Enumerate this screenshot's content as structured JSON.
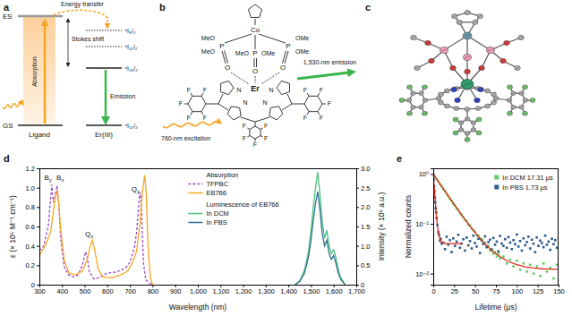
{
  "diagram_a": {
    "panel_label": "a",
    "excited_state": "ES",
    "ground_state": "GS",
    "energy_transfer": "Energy transfer",
    "absorption": "Absorption",
    "stokes_shift": "Stokes shift",
    "emission": "Emission",
    "donor": "Ligand",
    "acceptor": "Er(III)",
    "levels": [
      "⁴I₉/₂",
      "⁴I₁₁/₂",
      "⁴I₁₃/₂",
      "⁴I₁₅/₂"
    ]
  },
  "structure_b": {
    "panel_label": "b",
    "cobalt": "Co",
    "metal": "Er",
    "phosphorus": [
      "P",
      "P",
      "P"
    ],
    "oxygen": [
      "O",
      "O",
      "O"
    ],
    "methoxy": [
      "MeO",
      "MeO",
      "OMe",
      "OMe",
      "MeO",
      "OMe"
    ],
    "nitrogen": [
      "N",
      "N",
      "N",
      "N"
    ],
    "fluorine": [
      "F",
      "F",
      "F",
      "F",
      "F",
      "F",
      "F",
      "F",
      "F",
      "F",
      "F",
      "F",
      "F",
      "F",
      "F"
    ],
    "excitation": "760-nm excitation",
    "emission": "1,530-nm emission"
  },
  "structure_c": {
    "panel_label": "c"
  },
  "chart_data": [
    {
      "panel_label": "d",
      "type": "line",
      "xlabel": "Wavelength (nm)",
      "ylabel": "ε (× 10⁵ M⁻¹ cm⁻¹)",
      "y2label": "Intensity (× 10⁶ a.u.)",
      "xlim": [
        300,
        1700
      ],
      "xticks": [
        300,
        400,
        500,
        600,
        700,
        800,
        900,
        {
          "value": 1000,
          "label": "1,000"
        },
        {
          "value": 1100,
          "label": "1,100"
        },
        {
          "value": 1200,
          "label": "1,200"
        },
        {
          "value": 1300,
          "label": "1,300"
        },
        {
          "value": 1400,
          "label": "1,400"
        },
        {
          "value": 1500,
          "label": "1,500"
        },
        {
          "value": 1600,
          "label": "1,600"
        },
        {
          "value": 1700,
          "label": "1,700"
        }
      ],
      "ylim": [
        0,
        1.2
      ],
      "yticks": [
        0,
        0.2,
        0.4,
        0.6,
        0.8,
        {
          "value": 1,
          "label": "1.0"
        },
        1.2
      ],
      "y2lim": [
        0,
        3
      ],
      "y2ticks": [
        0,
        0.5,
        {
          "value": 1,
          "label": "1.0"
        },
        1.5,
        {
          "value": 2,
          "label": "2.0"
        },
        2.5,
        {
          "value": 3,
          "label": "3.0"
        }
      ],
      "legend": "upper center",
      "legend_titles": [
        "Absorption",
        "Luminescence of EB766"
      ],
      "annotations": [
        {
          "text": "By",
          "x": 338,
          "y": 1.08
        },
        {
          "text": "Bx",
          "x": 392,
          "y": 1.08
        },
        {
          "text": "Qx",
          "x": 520,
          "y": 0.5
        },
        {
          "text": "Qy",
          "x": 725,
          "y": 0.96
        }
      ],
      "series": [
        {
          "name": "TFPBC",
          "color": "#9b45c2",
          "line_style": "dashed",
          "x": [
            300,
            320,
            340,
            350,
            355,
            362,
            370,
            378,
            385,
            395,
            410,
            430,
            450,
            470,
            490,
            500,
            505,
            512,
            520,
            540,
            560,
            600,
            640,
            680,
            700,
            720,
            730,
            740,
            745,
            750,
            755,
            760,
            770,
            790,
            800
          ],
          "values": [
            0.35,
            0.4,
            0.62,
            0.9,
            1.03,
            0.85,
            0.92,
            1.02,
            0.85,
            0.45,
            0.18,
            0.1,
            0.08,
            0.1,
            0.2,
            0.3,
            0.34,
            0.28,
            0.14,
            0.06,
            0.07,
            0.12,
            0.13,
            0.17,
            0.23,
            0.38,
            0.55,
            0.85,
            0.95,
            0.85,
            0.5,
            0.22,
            0.05,
            0.01,
            0.0
          ]
        },
        {
          "name": "EB766",
          "color": "#f5a623",
          "x": [
            300,
            330,
            350,
            360,
            370,
            378,
            385,
            395,
            410,
            430,
            460,
            490,
            510,
            525,
            535,
            545,
            560,
            580,
            620,
            660,
            690,
            710,
            730,
            745,
            755,
            765,
            772,
            780,
            790,
            800
          ],
          "values": [
            0.3,
            0.42,
            0.55,
            0.72,
            0.9,
            0.97,
            0.85,
            0.55,
            0.25,
            0.12,
            0.1,
            0.14,
            0.25,
            0.4,
            0.46,
            0.35,
            0.16,
            0.08,
            0.07,
            0.1,
            0.14,
            0.22,
            0.35,
            0.65,
            0.95,
            1.13,
            0.95,
            0.4,
            0.08,
            0.0
          ]
        },
        {
          "name": "In DCM",
          "color": "#4cc27a",
          "axis": "y2",
          "x": [
            1430,
            1450,
            1470,
            1480,
            1490,
            1500,
            1510,
            1520,
            1530,
            1540,
            1550,
            1560,
            1570,
            1580,
            1590,
            1600,
            1610,
            1620,
            1630,
            1650
          ],
          "values": [
            0,
            0.1,
            0.35,
            0.6,
            0.9,
            1.4,
            2.0,
            2.5,
            2.9,
            2.3,
            1.6,
            1.2,
            1.4,
            1.0,
            0.8,
            0.9,
            0.7,
            0.4,
            0.2,
            0
          ]
        },
        {
          "name": "In PBS",
          "color": "#2f6f8f",
          "axis": "y2",
          "x": [
            1430,
            1450,
            1470,
            1480,
            1490,
            1500,
            1510,
            1520,
            1530,
            1540,
            1550,
            1560,
            1570,
            1580,
            1590,
            1600,
            1610,
            1620,
            1630,
            1650
          ],
          "values": [
            0,
            0.08,
            0.28,
            0.5,
            0.75,
            1.15,
            1.65,
            2.1,
            2.4,
            1.9,
            1.3,
            1.0,
            1.15,
            0.8,
            0.65,
            0.75,
            0.55,
            0.32,
            0.15,
            0
          ]
        }
      ]
    },
    {
      "panel_label": "e",
      "type": "scatter",
      "xlabel": "Lifetime (μs)",
      "ylabel": "Normalized counts",
      "xlim": [
        0,
        150
      ],
      "xticks": [
        0,
        25,
        50,
        75,
        100,
        125,
        150
      ],
      "log": "y",
      "ylim": [
        0.006,
        1.3
      ],
      "yticks": [
        {
          "value": 0.01,
          "label": "10⁻²"
        },
        {
          "value": 0.1,
          "label": "10⁻¹"
        },
        {
          "value": 1,
          "label": "10⁰"
        }
      ],
      "legend": "upper right",
      "series": [
        {
          "name": "In DCM 17.31 μs",
          "color": "#66cc66",
          "marker": "square",
          "x": [
            0,
            2,
            4,
            6,
            8,
            10,
            12,
            14,
            16,
            18,
            20,
            22,
            24,
            26,
            28,
            30,
            32,
            34,
            36,
            38,
            40,
            42,
            44,
            46,
            48,
            50,
            52,
            54,
            56,
            58,
            60,
            62,
            64,
            66,
            68,
            70,
            72,
            74,
            76,
            78,
            80,
            84,
            88,
            92,
            96,
            100,
            104,
            108,
            112,
            116,
            120,
            124,
            128,
            132,
            136,
            140,
            144,
            148
          ],
          "values": [
            1.0,
            0.885,
            0.79,
            0.71,
            0.628,
            0.57,
            0.5,
            0.452,
            0.4,
            0.36,
            0.318,
            0.29,
            0.255,
            0.232,
            0.204,
            0.19,
            0.165,
            0.152,
            0.136,
            0.12,
            0.113,
            0.097,
            0.092,
            0.08,
            0.074,
            0.069,
            0.058,
            0.058,
            0.05,
            0.049,
            0.041,
            0.042,
            0.034,
            0.036,
            0.029,
            0.031,
            0.025,
            0.027,
            0.022,
            0.025,
            0.02,
            0.022,
            0.016,
            0.019,
            0.014,
            0.018,
            0.012,
            0.016,
            0.011,
            0.015,
            0.01,
            0.014,
            0.009,
            0.016,
            0.011,
            0.013,
            0.008,
            0.015
          ]
        },
        {
          "name": "In PBS 1.73 μs",
          "color": "#2e5c8a",
          "marker": "square",
          "x": [
            0,
            0.5,
            1,
            1.5,
            2,
            2.5,
            3,
            3.5,
            4,
            5,
            6,
            7,
            8,
            9,
            10,
            12,
            14,
            16,
            18,
            20,
            22,
            24,
            26,
            28,
            30,
            32,
            34,
            36,
            38,
            40,
            42,
            44,
            46,
            48,
            50,
            52,
            54,
            56,
            58,
            60,
            62,
            64,
            66,
            68,
            70,
            72,
            74,
            76,
            78,
            80,
            82,
            84,
            86,
            88,
            90,
            92,
            94,
            96,
            98,
            100,
            102,
            104,
            106,
            108,
            110,
            112,
            114,
            116,
            118,
            120,
            122,
            124,
            126,
            128,
            130,
            132,
            134,
            136,
            138,
            140,
            142,
            144,
            146,
            148,
            150
          ],
          "values": [
            0.98,
            0.77,
            0.57,
            0.45,
            0.335,
            0.27,
            0.205,
            0.17,
            0.13,
            0.095,
            0.068,
            0.06,
            0.046,
            0.05,
            0.04,
            0.042,
            0.031,
            0.055,
            0.038,
            0.047,
            0.027,
            0.051,
            0.036,
            0.044,
            0.06,
            0.033,
            0.04,
            0.049,
            0.029,
            0.053,
            0.037,
            0.045,
            0.032,
            0.058,
            0.041,
            0.035,
            0.05,
            0.026,
            0.046,
            0.039,
            0.056,
            0.034,
            0.043,
            0.048,
            0.03,
            0.052,
            0.038,
            0.044,
            0.028,
            0.057,
            0.04,
            0.036,
            0.049,
            0.033,
            0.054,
            0.042,
            0.031,
            0.047,
            0.039,
            0.061,
            0.035,
            0.045,
            0.029,
            0.051,
            0.037,
            0.043,
            0.055,
            0.032,
            0.048,
            0.04,
            0.027,
            0.053,
            0.036,
            0.046,
            0.041,
            0.034,
            0.058,
            0.038,
            0.044,
            0.03,
            0.05,
            0.039,
            0.047,
            0.033,
            0.052
          ]
        },
        {
          "type": "line",
          "color": "#e02a1a",
          "x": [
            0,
            5,
            10,
            15,
            20,
            25,
            30,
            35,
            40,
            45,
            50,
            60,
            70,
            80,
            90,
            100,
            110,
            120,
            130,
            140,
            150
          ],
          "values": [
            0.997,
            0.75,
            0.565,
            0.426,
            0.322,
            0.244,
            0.186,
            0.142,
            0.11,
            0.085,
            0.067,
            0.043,
            0.029,
            0.0218,
            0.0174,
            0.0151,
            0.0137,
            0.013,
            0.0125,
            0.0123,
            0.0122
          ]
        },
        {
          "type": "line",
          "color": "#e02a1a",
          "x": [
            0,
            1,
            2,
            3,
            4,
            5,
            6,
            8,
            10,
            12,
            15,
            20,
            25,
            30,
            35
          ],
          "values": [
            1.0,
            0.579,
            0.342,
            0.21,
            0.135,
            0.093,
            0.07,
            0.049,
            0.043,
            0.041,
            0.04,
            0.04,
            0.04,
            0.04,
            0.04
          ]
        }
      ]
    }
  ]
}
